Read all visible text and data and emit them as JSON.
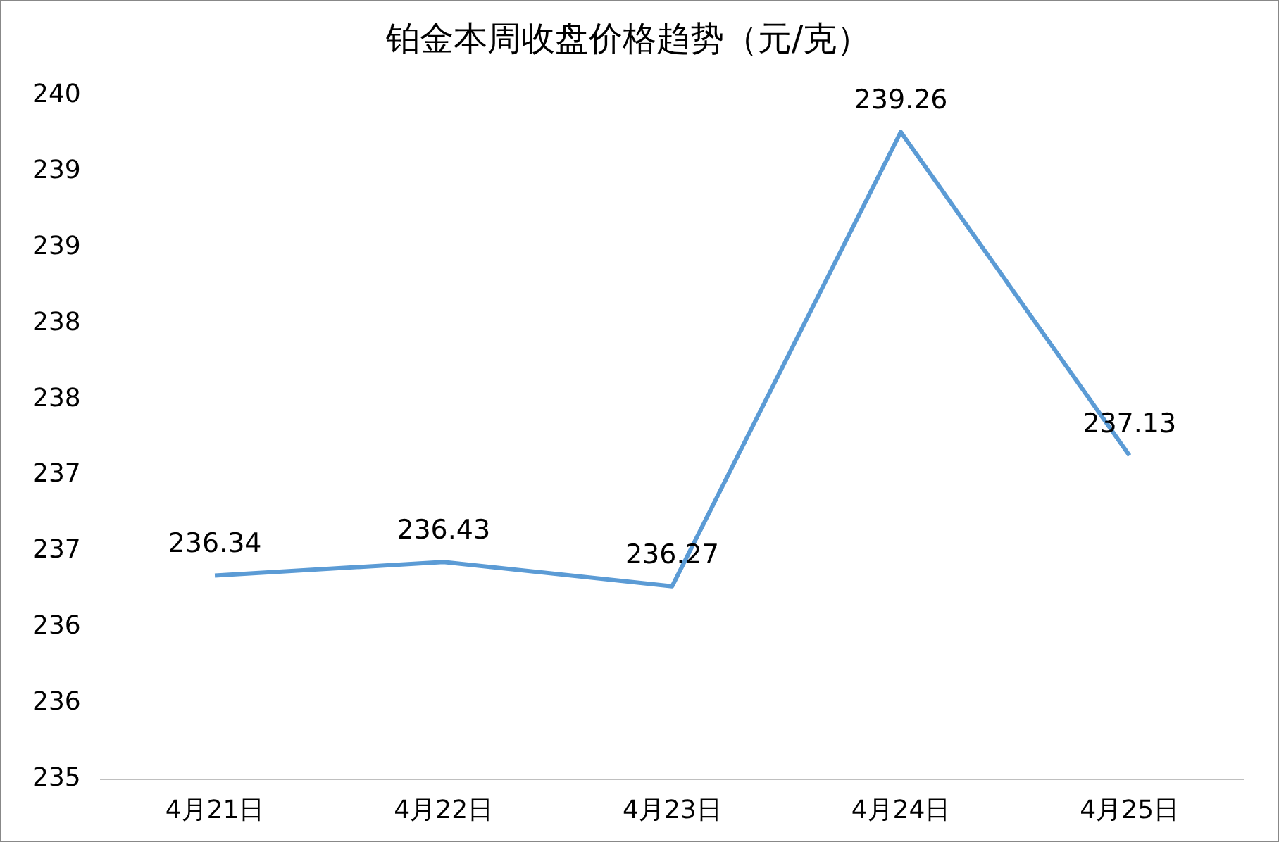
{
  "chart_data": {
    "type": "line",
    "title": "铂金本周收盘价格趋势（元/克）",
    "categories": [
      "4月21日",
      "4月22日",
      "4月23日",
      "4月24日",
      "4月25日"
    ],
    "series": [
      {
        "color": "#5b9bd5",
        "values": [
          236.34,
          236.43,
          236.27,
          239.26,
          237.13
        ]
      }
    ],
    "ylim": [
      235,
      239.5
    ],
    "yticks": [
      235,
      {
        "value": 235.5,
        "label": "236"
      },
      236,
      {
        "value": 236.5,
        "label": "237"
      },
      237,
      {
        "value": 237.5,
        "label": "238"
      },
      238,
      {
        "value": 238.5,
        "label": "239"
      },
      239,
      {
        "value": 239.5,
        "label": "240"
      }
    ],
    "grid": false,
    "legend": false,
    "marker": "none",
    "line_style": "solid",
    "data_labels": true
  }
}
